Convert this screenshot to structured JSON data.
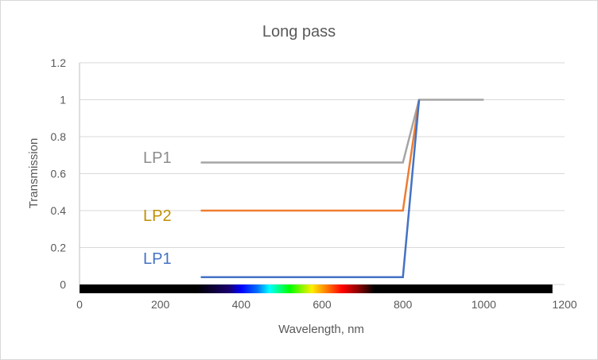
{
  "chart_data": {
    "type": "line",
    "title": "Long pass",
    "xlabel": "Wavelength, nm",
    "ylabel": "Transmission",
    "xlim": [
      0,
      1200
    ],
    "ylim": [
      0,
      1.2
    ],
    "xticks": [
      "0",
      "200",
      "400",
      "600",
      "800",
      "1000",
      "1200"
    ],
    "yticks": [
      "0",
      "0.2",
      "0.4",
      "0.6",
      "0.8",
      "1",
      "1.2"
    ],
    "grid": true,
    "series": [
      {
        "name": "LP1 (gray)",
        "color": "#A5A5A5",
        "x": [
          300,
          800,
          840,
          1000
        ],
        "y": [
          0.66,
          0.66,
          1,
          1
        ]
      },
      {
        "name": "LP2",
        "color": "#ED7D31",
        "x": [
          300,
          800,
          840
        ],
        "y": [
          0.4,
          0.4,
          1
        ]
      },
      {
        "name": "LP1 (blue)",
        "color": "#4472C4",
        "x": [
          300,
          800,
          840
        ],
        "y": [
          0.04,
          0.04,
          1
        ]
      }
    ],
    "annotations": [
      {
        "text": "LP1",
        "color": "#8C8C8C"
      },
      {
        "text": "LP2",
        "color": "#BF9000"
      },
      {
        "text": "LP1",
        "color": "#4472C4"
      }
    ],
    "spectrum_bar": {
      "range_nm": [
        0,
        1170
      ],
      "visible_range_nm": [
        290,
        730
      ]
    }
  }
}
